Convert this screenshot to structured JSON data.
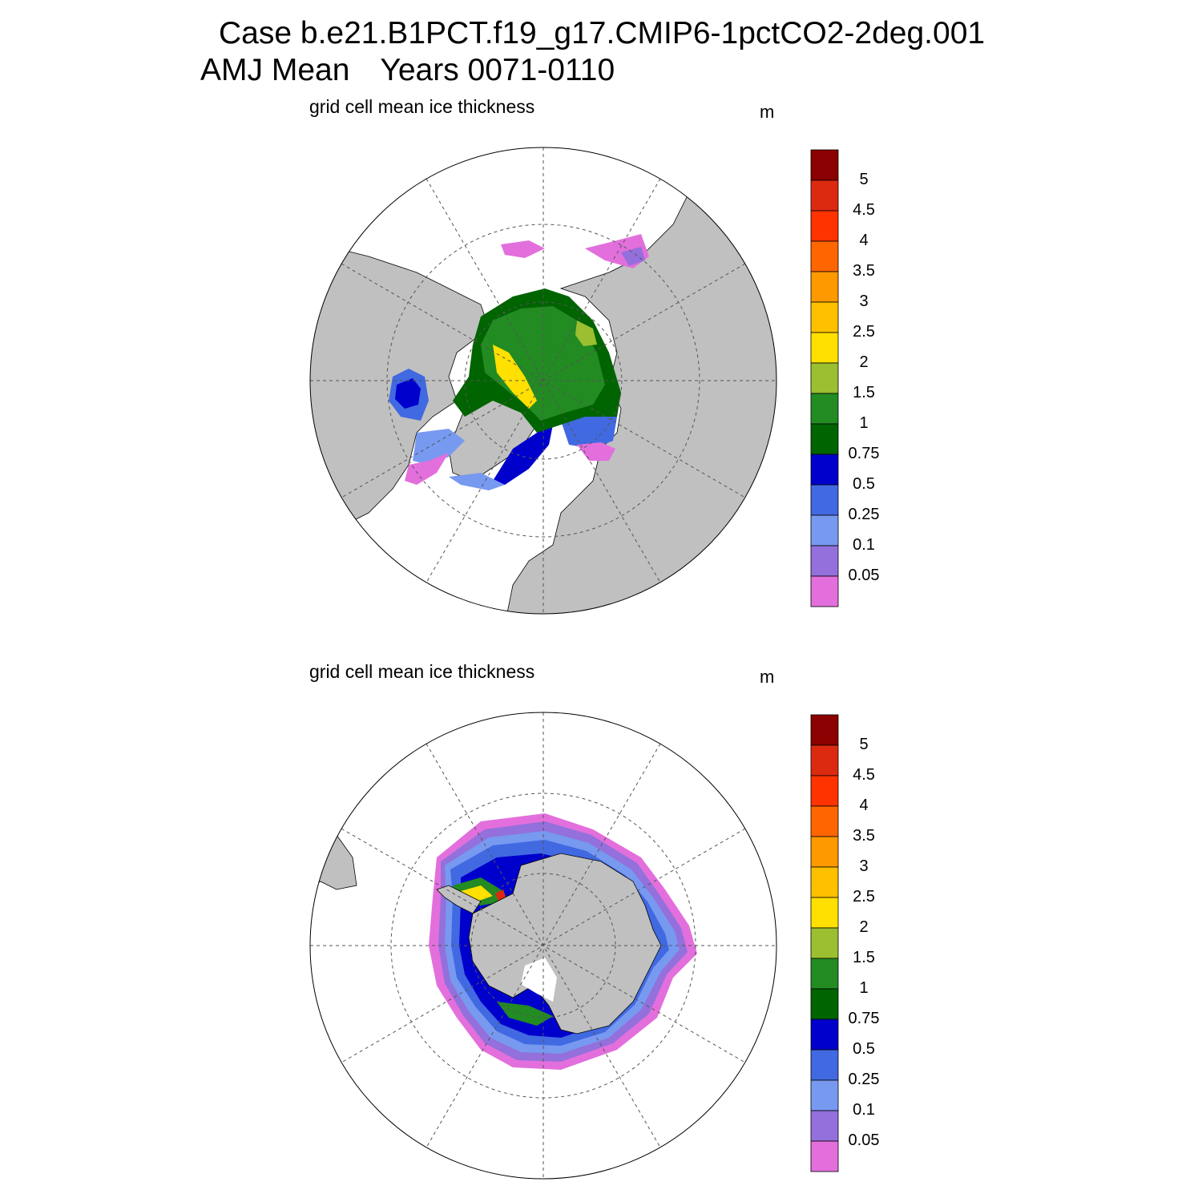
{
  "title": {
    "case_line": "Case b.e21.B1PCT.f19_g17.CMIP6-1pctCO2-2deg.001",
    "season": "AMJ Mean",
    "years": "Years 0071-0110"
  },
  "panels": [
    {
      "hemisphere": "north",
      "subtitle": "grid cell mean ice thickness",
      "units": "m"
    },
    {
      "hemisphere": "south",
      "subtitle": "grid cell mean ice thickness",
      "units": "m"
    }
  ],
  "colorbar": {
    "labels": [
      "5",
      "4.5",
      "4",
      "3.5",
      "3",
      "2.5",
      "2",
      "1.5",
      "1",
      "0.75",
      "0.5",
      "0.25",
      "0.1",
      "0.05"
    ],
    "colors": [
      "#8b0000",
      "#dc2a10",
      "#ff3300",
      "#ff6600",
      "#ff9900",
      "#ffc000",
      "#ffe000",
      "#9bbf30",
      "#228b22",
      "#006400",
      "#0000cd",
      "#4169e1",
      "#7799f0",
      "#9370db",
      "#e36fdc"
    ]
  },
  "colors": {
    "land": "#c0c0c0",
    "ocean": "#ffffff"
  }
}
